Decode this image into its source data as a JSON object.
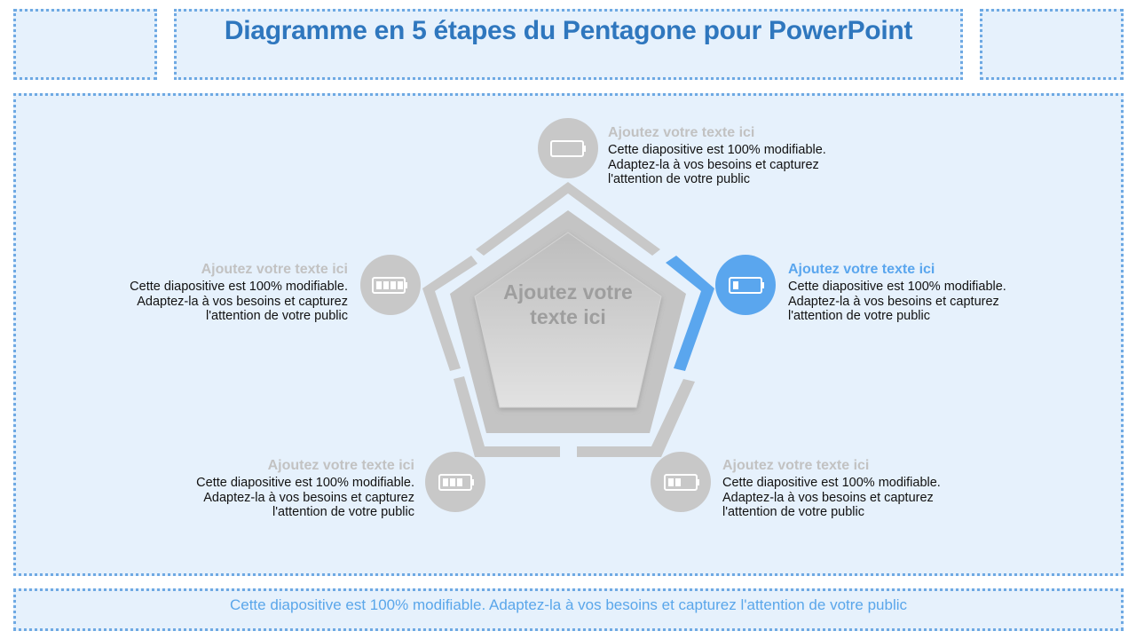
{
  "title": "Diagramme en 5 étapes du Pentagone pour PowerPoint",
  "footer": "Cette diapositive est 100% modifiable. Adaptez-la à vos besoins et capturez l'attention de votre public",
  "center_label": "Ajoutez votre texte ici",
  "colors": {
    "accent": "#5aa6ee",
    "inactive": "#c8c8c8",
    "background": "#e6f1fc",
    "border": "#6ea9e3"
  },
  "steps": [
    {
      "heading": "Ajoutez votre texte ici",
      "body": "Cette diapositive est 100% modifiable. Adaptez-la à vos besoins et capturez l'attention de votre public",
      "icon": "battery-empty-icon"
    },
    {
      "heading": "Ajoutez votre texte ici",
      "body": "Cette diapositive est 100% modifiable. Adaptez-la à vos besoins et capturez l'attention de votre public",
      "icon": "battery-low-icon"
    },
    {
      "heading": "Ajoutez votre texte ici",
      "body": "Cette diapositive est 100% modifiable. Adaptez-la à vos besoins et capturez l'attention de votre public",
      "icon": "battery-half-icon"
    },
    {
      "heading": "Ajoutez votre texte ici",
      "body": "Cette diapositive est 100% modifiable. Adaptez-la à vos besoins et capturez l'attention de votre public",
      "icon": "battery-three-quarter-icon"
    },
    {
      "heading": "Ajoutez votre texte ici",
      "body": "Cette diapositive est 100% modifiable. Adaptez-la à vos besoins et capturez l'attention de votre public",
      "icon": "battery-full-icon"
    }
  ]
}
